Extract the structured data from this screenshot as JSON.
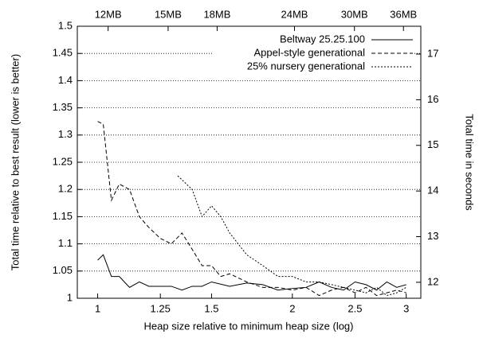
{
  "chart_data": {
    "type": "line",
    "xlabel": "Heap size relative to minimum heap size (log)",
    "ylabel": "Total time relative to best result (lower is better)",
    "y2label": "Total time in seconds",
    "xscale": "log",
    "xlim": [
      0.93,
      3.16
    ],
    "xticks": [
      1,
      1.25,
      1.5,
      2,
      2.5,
      3
    ],
    "x2scale": "log",
    "x2lim": [
      10.7,
      38.4
    ],
    "x2ticks": [
      {
        "value": 12,
        "label": "12MB"
      },
      {
        "value": 15,
        "label": "15MB"
      },
      {
        "value": 18,
        "label": "18MB"
      },
      {
        "value": 24,
        "label": "24MB"
      },
      {
        "value": 30,
        "label": "30MB"
      },
      {
        "value": 36,
        "label": "36MB"
      }
    ],
    "ylim": [
      1,
      1.5
    ],
    "yticks": [
      1,
      1.05,
      1.1,
      1.15,
      1.2,
      1.25,
      1.3,
      1.35,
      1.4,
      1.45,
      1.5
    ],
    "y2lim": [
      11.65,
      17.61
    ],
    "y2ticks": [
      12,
      13,
      14,
      15,
      16,
      17
    ],
    "grid": true,
    "legend": "top-right",
    "series": [
      {
        "name": "Beltway 25.25.100",
        "color": "#000000",
        "dash": "solid",
        "x": [
          1.0,
          1.02,
          1.05,
          1.08,
          1.12,
          1.16,
          1.2,
          1.3,
          1.35,
          1.4,
          1.45,
          1.5,
          1.6,
          1.7,
          1.8,
          1.9,
          2.0,
          2.1,
          2.2,
          2.3,
          2.4,
          2.5,
          2.6,
          2.7,
          2.8,
          2.9,
          3.0
        ],
        "values": [
          1.07,
          1.08,
          1.04,
          1.04,
          1.02,
          1.03,
          1.022,
          1.022,
          1.015,
          1.022,
          1.022,
          1.03,
          1.022,
          1.028,
          1.025,
          1.015,
          1.018,
          1.02,
          1.03,
          1.02,
          1.015,
          1.03,
          1.025,
          1.015,
          1.03,
          1.02,
          1.025
        ]
      },
      {
        "name": "Appel-style generational",
        "color": "#000000",
        "dash": "dashed",
        "x": [
          1.0,
          1.02,
          1.05,
          1.08,
          1.12,
          1.16,
          1.2,
          1.25,
          1.3,
          1.35,
          1.4,
          1.45,
          1.5,
          1.55,
          1.6,
          1.7,
          1.8,
          1.9,
          2.0,
          2.1,
          2.2,
          2.3,
          2.4,
          2.5,
          2.6,
          2.7,
          2.8,
          2.9,
          3.0
        ],
        "values": [
          1.325,
          1.32,
          1.18,
          1.21,
          1.2,
          1.15,
          1.13,
          1.11,
          1.1,
          1.12,
          1.09,
          1.06,
          1.06,
          1.04,
          1.045,
          1.03,
          1.02,
          1.02,
          1.015,
          1.02,
          1.005,
          1.015,
          1.02,
          1.01,
          1.02,
          1.005,
          1.01,
          1.015,
          1.01
        ]
      },
      {
        "name": "25% nursery generational",
        "color": "#000000",
        "dash": "dotted",
        "x": [
          1.33,
          1.4,
          1.45,
          1.5,
          1.55,
          1.6,
          1.7,
          1.8,
          1.9,
          2.0,
          2.1,
          2.2,
          2.3,
          2.4,
          2.5,
          2.6,
          2.7,
          2.8,
          2.9,
          3.0
        ],
        "values": [
          1.225,
          1.2,
          1.15,
          1.17,
          1.15,
          1.12,
          1.08,
          1.06,
          1.04,
          1.04,
          1.03,
          1.03,
          1.025,
          1.02,
          1.015,
          1.01,
          1.02,
          1.005,
          1.01,
          1.02
        ]
      }
    ]
  }
}
